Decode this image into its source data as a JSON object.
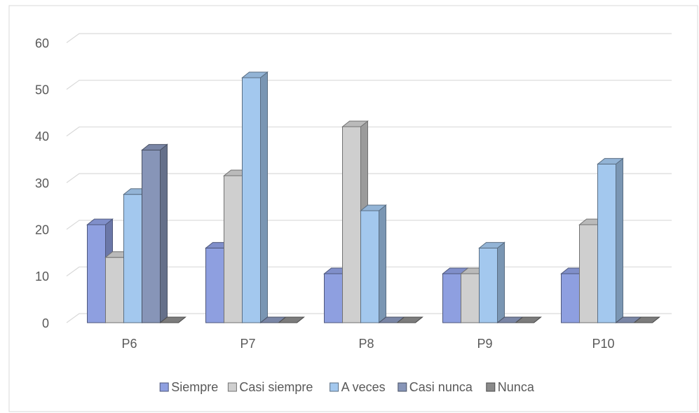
{
  "chart_data": {
    "type": "bar3d",
    "categories": [
      "P6",
      "P7",
      "P8",
      "P9",
      "P10"
    ],
    "series": [
      {
        "name": "Siempre",
        "color": "#8e9fe0",
        "values": [
          21,
          16,
          10.5,
          10.5,
          10.5
        ]
      },
      {
        "name": "Casi siempre",
        "color": "#cfcfcf",
        "values": [
          14,
          31.5,
          42,
          10.5,
          21
        ]
      },
      {
        "name": "A veces",
        "color": "#a3c8ee",
        "values": [
          27.5,
          52.5,
          24,
          16,
          34
        ]
      },
      {
        "name": "Casi nunca",
        "color": "#8795b8",
        "values": [
          37,
          0,
          0,
          0,
          0
        ]
      },
      {
        "name": "Nunca",
        "color": "#8a8a8a",
        "values": [
          0,
          0,
          0,
          0,
          0
        ]
      }
    ],
    "ylim": [
      0,
      60
    ],
    "yticks": [
      0,
      10,
      20,
      30,
      40,
      50,
      60
    ],
    "grid": true,
    "legend": "bottom"
  }
}
